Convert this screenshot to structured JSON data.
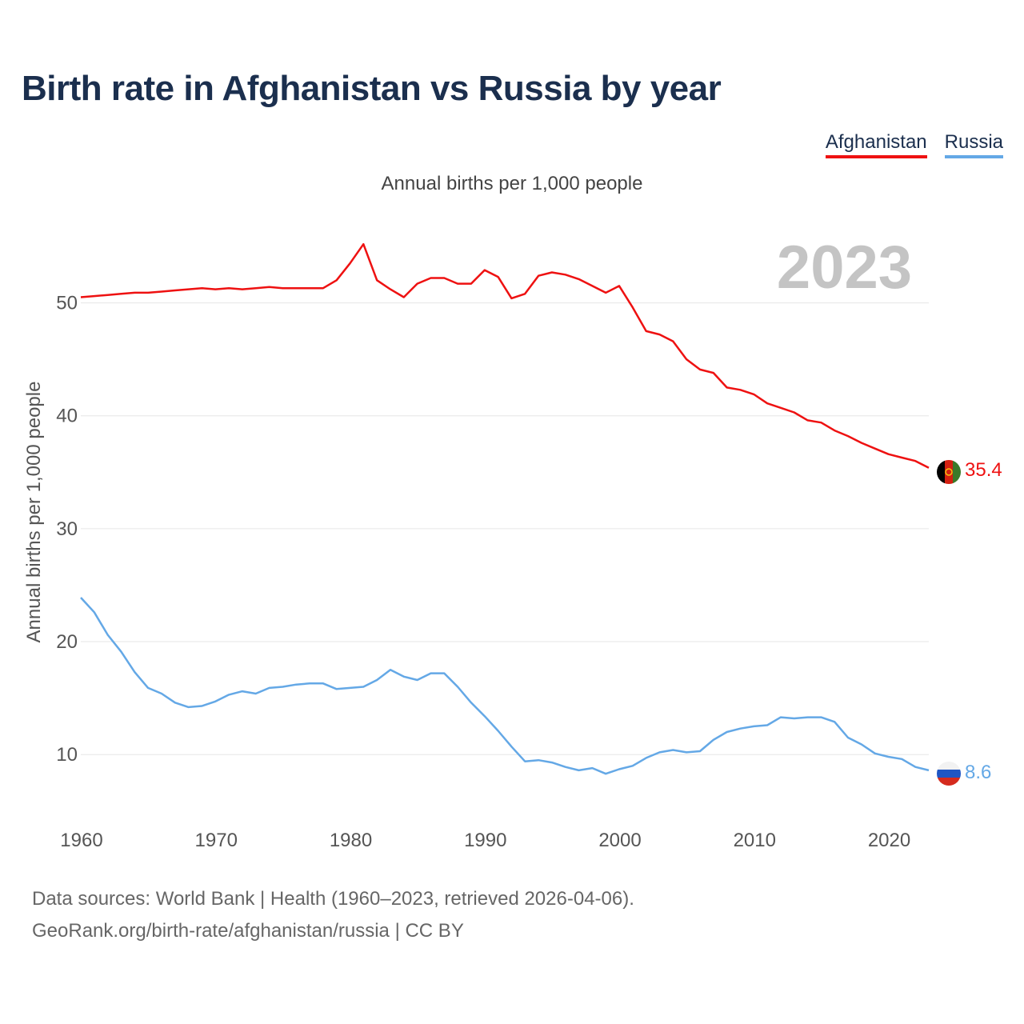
{
  "title": "Birth rate in Afghanistan vs Russia by year",
  "subtitle": "Annual births per 1,000 people",
  "footer": {
    "line1": "Data sources: World Bank | Health (1960–2023, retrieved 2026-04-06).",
    "line2": "GeoRank.org/birth-rate/afghanistan/russia | CC BY"
  },
  "chart_data": {
    "type": "line",
    "title": "Birth rate in Afghanistan vs Russia by year",
    "ylabel": "Annual births per 1,000 people",
    "xlabel": "",
    "year_label": "2023",
    "xlim": [
      1960,
      2023
    ],
    "ylim": [
      4.7,
      58.4
    ],
    "yticks": [
      10,
      20,
      30,
      40,
      50
    ],
    "xticks": [
      1960,
      1970,
      1980,
      1990,
      2000,
      2010,
      2020
    ],
    "grid": true,
    "legend_position": "top-right",
    "x": [
      1960,
      1961,
      1962,
      1963,
      1964,
      1965,
      1966,
      1967,
      1968,
      1969,
      1970,
      1971,
      1972,
      1973,
      1974,
      1975,
      1976,
      1977,
      1978,
      1979,
      1980,
      1981,
      1982,
      1983,
      1984,
      1985,
      1986,
      1987,
      1988,
      1989,
      1990,
      1991,
      1992,
      1993,
      1994,
      1995,
      1996,
      1997,
      1998,
      1999,
      2000,
      2001,
      2002,
      2003,
      2004,
      2005,
      2006,
      2007,
      2008,
      2009,
      2010,
      2011,
      2012,
      2013,
      2014,
      2015,
      2016,
      2017,
      2018,
      2019,
      2020,
      2021,
      2022,
      2023
    ],
    "series": [
      {
        "name": "Afghanistan",
        "color": "#ee1111",
        "end_label": "35.4",
        "flag": "afghanistan-flag-icon",
        "values": [
          50.5,
          50.6,
          50.7,
          50.8,
          50.9,
          50.9,
          51.0,
          51.1,
          51.2,
          51.3,
          51.2,
          51.3,
          51.2,
          51.3,
          51.4,
          51.3,
          51.3,
          51.3,
          51.3,
          52.0,
          53.5,
          55.2,
          52.0,
          51.2,
          50.5,
          51.7,
          52.2,
          52.2,
          51.7,
          51.7,
          52.9,
          52.3,
          50.4,
          50.8,
          52.4,
          52.7,
          52.5,
          52.1,
          51.5,
          50.9,
          51.5,
          49.6,
          47.5,
          47.2,
          46.6,
          45.0,
          44.1,
          43.8,
          42.5,
          42.3,
          41.9,
          41.1,
          40.7,
          40.3,
          39.6,
          39.4,
          38.7,
          38.2,
          37.6,
          37.1,
          36.6,
          36.3,
          36.0,
          35.4
        ]
      },
      {
        "name": "Russia",
        "color": "#64a8e6",
        "end_label": "8.6",
        "flag": "russia-flag-icon",
        "values": [
          23.9,
          22.6,
          20.6,
          19.1,
          17.3,
          15.9,
          15.4,
          14.6,
          14.2,
          14.3,
          14.7,
          15.3,
          15.6,
          15.4,
          15.9,
          16.0,
          16.2,
          16.3,
          16.3,
          15.8,
          15.9,
          16.0,
          16.6,
          17.5,
          16.9,
          16.6,
          17.2,
          17.2,
          16.0,
          14.6,
          13.4,
          12.1,
          10.7,
          9.4,
          9.5,
          9.3,
          8.9,
          8.6,
          8.8,
          8.3,
          8.7,
          9.0,
          9.7,
          10.2,
          10.4,
          10.2,
          10.3,
          11.3,
          12.0,
          12.3,
          12.5,
          12.6,
          13.3,
          13.2,
          13.3,
          13.3,
          12.9,
          11.5,
          10.9,
          10.1,
          9.8,
          9.6,
          8.9,
          8.6
        ]
      }
    ]
  }
}
